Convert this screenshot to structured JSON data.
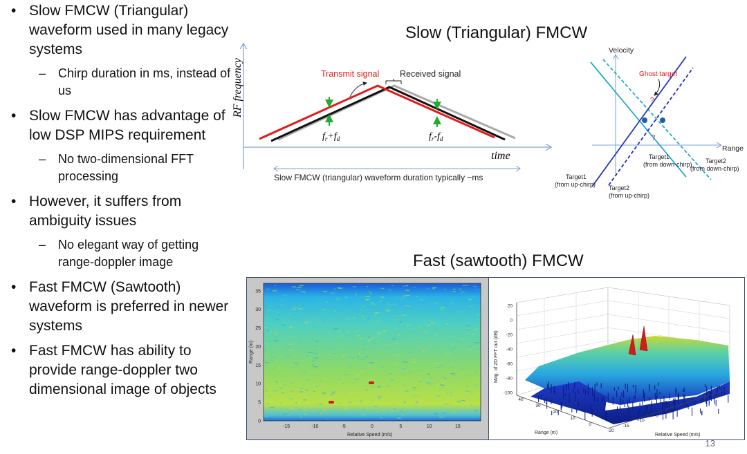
{
  "bullets": [
    {
      "text": "Slow FMCW (Triangular) waveform used in many legacy systems",
      "subs": [
        "Chirp duration in ms, instead of us"
      ]
    },
    {
      "text": "Slow FMCW has advantage of low DSP MIPS requirement",
      "subs": [
        "No two-dimensional FFT processing"
      ]
    },
    {
      "text": "However, it suffers from ambiguity issues",
      "subs": [
        "No elegant way of getting range-doppler image"
      ]
    },
    {
      "text": "Fast FMCW (Sawtooth) waveform is preferred in newer systems",
      "subs": []
    },
    {
      "text": "Fast FMCW has ability to provide range-doppler two dimensional image of objects",
      "subs": []
    }
  ],
  "bullet_glyph": "•",
  "dash_glyph": "–",
  "slow_title": "Slow (Triangular) FMCW",
  "fast_title": "Fast (sawtooth) FMCW",
  "tri": {
    "ylabel": "RF frequency",
    "xlabel": "time",
    "transmit": "Transmit signal",
    "received": "Received signal",
    "sum_label": "fr+fd",
    "diff_label": "fr-fd",
    "duration": "Slow FMCW (triangular) waveform duration typically ~ms",
    "colors": {
      "transmit": "#e41a1c",
      "received_black": "#111111",
      "received_gray": "#a9a9a9",
      "arrow": "#22aa33",
      "axis": "#7aa0d8"
    }
  },
  "vr": {
    "velocity": "Velocity",
    "range": "Range",
    "ghost": "Ghost target",
    "q": "?",
    "t1_down_a": "Target1",
    "t1_down_b": "(from down-chirp)",
    "t2_down_a": "Target2",
    "t2_down_b": "(from down-chirp)",
    "t1_up_a": "Target1",
    "t1_up_b": "(from up-chirp)",
    "t2_up_a": "Target2",
    "t2_up_b": "(from up-chirp)",
    "colors": {
      "solid": "#2233bb",
      "dashed_dark": "#1a2acc",
      "cyan": "#22a8c8",
      "point": "#1f5f9f",
      "ghost": "#e41a1c"
    }
  },
  "heatmap": {
    "ylabel": "Range (m)",
    "xlabel": "Relative Speed (m/s)",
    "yticks": [
      "0",
      "5",
      "10",
      "15",
      "20",
      "25",
      "30",
      "35"
    ],
    "xticks": [
      "-15",
      "-10",
      "-5",
      "0",
      "5",
      "10",
      "15"
    ]
  },
  "surface": {
    "zlabel": "Mag. of 2D FFT out (dB)",
    "xlabel": "Range (m)",
    "ylabel": "Relative Speed (m/s)",
    "zticks": [
      "20",
      "0",
      "-20",
      "-40",
      "-60",
      "-80",
      "-100"
    ],
    "rticks": [
      "40",
      "30",
      "20",
      "10",
      "0"
    ],
    "sticks": [
      "-20",
      "-15",
      "-10",
      "-5",
      "0",
      "5",
      "10",
      "15"
    ]
  },
  "page_number": "13"
}
